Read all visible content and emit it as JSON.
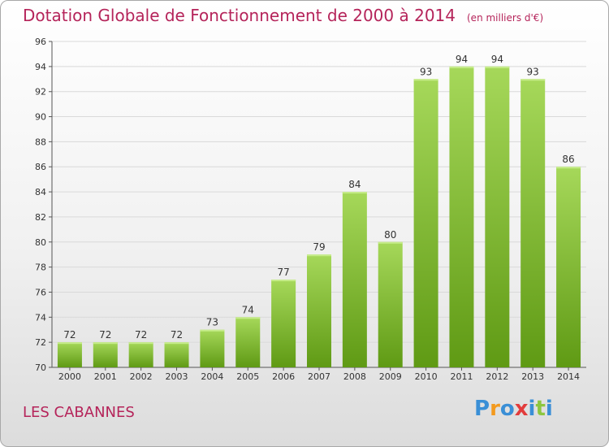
{
  "header": {
    "title": "Dotation Globale de Fonctionnement de 2000 à 2014",
    "subtitle": "(en milliers d'€)"
  },
  "footer": {
    "place_name": "LES CABANNES",
    "logo_text": "Proxiti"
  },
  "colors": {
    "title": "#b5245a",
    "bar_top": "#a6d85a",
    "bar_bottom": "#5f9a14",
    "grid": "#d9d9d9",
    "logo_letters": [
      "#3a8fd6",
      "#f39a1e",
      "#3a8fd6",
      "#e23c3c",
      "#3a8fd6",
      "#8cc63f",
      "#3a8fd6"
    ]
  },
  "chart_data": {
    "type": "bar",
    "title": "Dotation Globale de Fonctionnement de 2000 à 2014",
    "subtitle": "(en milliers d'€)",
    "xlabel": "",
    "ylabel": "",
    "categories": [
      "2000",
      "2001",
      "2002",
      "2003",
      "2004",
      "2005",
      "2006",
      "2007",
      "2008",
      "2009",
      "2010",
      "2011",
      "2012",
      "2013",
      "2014"
    ],
    "values": [
      72,
      72,
      72,
      72,
      73,
      74,
      77,
      79,
      84,
      80,
      93,
      94,
      94,
      93,
      86
    ],
    "ylim": [
      70,
      96
    ],
    "yticks": [
      70,
      72,
      74,
      76,
      78,
      80,
      82,
      84,
      86,
      88,
      90,
      92,
      94,
      96
    ],
    "grid": true,
    "data_labels": true
  }
}
